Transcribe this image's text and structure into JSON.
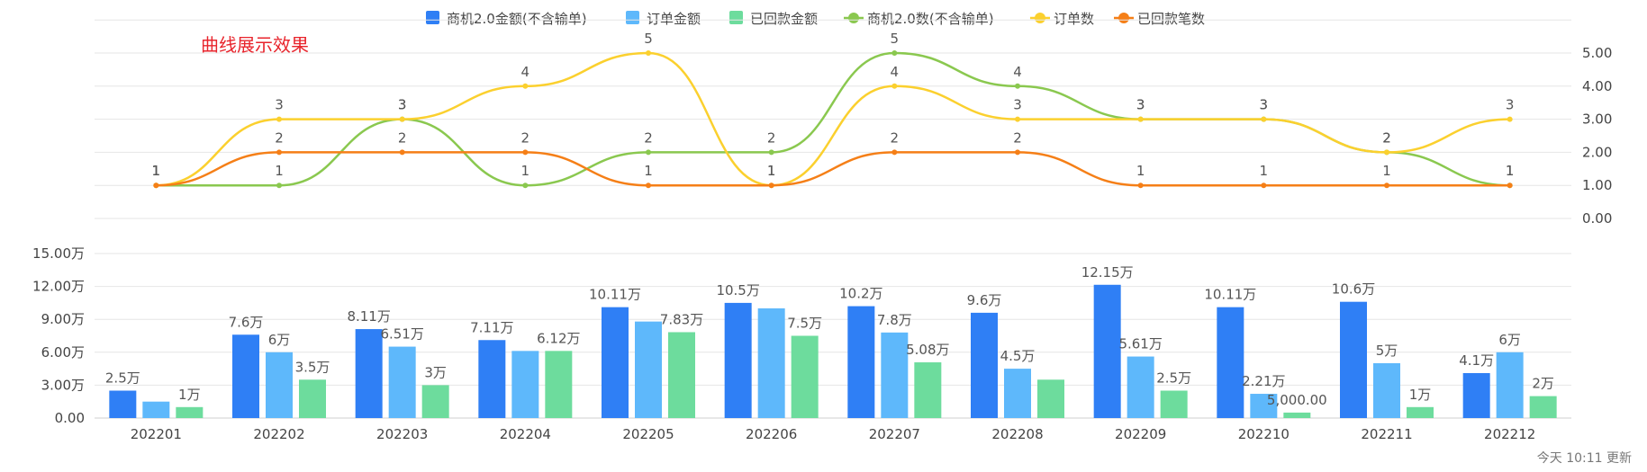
{
  "colors": {
    "biz_amount": "#2f7ff5",
    "order_amount": "#5eb8fb",
    "paid_amount": "#6ddc9d",
    "biz_count": "#8ac84f",
    "order_count": "#fbd02e",
    "paid_count": "#f57f17"
  },
  "annotation": "曲线展示效果",
  "footer": "今天 10:11 更新",
  "chart_data": [
    {
      "type": "line",
      "smooth": true,
      "categories": [
        "202201",
        "202202",
        "202203",
        "202204",
        "202205",
        "202206",
        "202207",
        "202208",
        "202209",
        "202210",
        "202211",
        "202212"
      ],
      "series": [
        {
          "name": "商机2.0数(不含输单)",
          "color_key": "biz_count",
          "values": [
            1,
            1,
            3,
            1,
            2,
            2,
            5,
            4,
            3,
            3,
            2,
            1
          ]
        },
        {
          "name": "订单数",
          "color_key": "order_count",
          "values": [
            1,
            3,
            3,
            4,
            5,
            1,
            4,
            3,
            3,
            3,
            2,
            3
          ]
        },
        {
          "name": "已回款笔数",
          "color_key": "paid_count",
          "values": [
            1,
            2,
            2,
            2,
            1,
            1,
            2,
            2,
            1,
            1,
            1,
            1
          ]
        }
      ],
      "yaxis_ticks": [
        "0.00",
        "1.00",
        "2.00",
        "3.00",
        "4.00",
        "5.00"
      ],
      "ylim": [
        0,
        6
      ],
      "yaxis_position": "right",
      "grid": true
    },
    {
      "type": "bar",
      "categories": [
        "202201",
        "202202",
        "202203",
        "202204",
        "202205",
        "202206",
        "202207",
        "202208",
        "202209",
        "202210",
        "202211",
        "202212"
      ],
      "series": [
        {
          "name": "商机2.0金额(不含输单)",
          "color_key": "biz_amount",
          "values": [
            25000,
            76000,
            81100,
            71100,
            101100,
            105000,
            102000,
            96000,
            121500,
            101100,
            106000,
            41000
          ],
          "labels": [
            "2.5万",
            "7.6万",
            "8.11万",
            "7.11万",
            "10.11万",
            "10.5万",
            "10.2万",
            "9.6万",
            "12.15万",
            "10.11万",
            "10.6万",
            "4.1万"
          ]
        },
        {
          "name": "订单金额",
          "color_key": "order_amount",
          "values": [
            15000,
            60000,
            65100,
            61200,
            88000,
            100000,
            78000,
            45000,
            56100,
            22100,
            50000,
            60000
          ],
          "labels": [
            "",
            "6万",
            "6.51万",
            "",
            "",
            "",
            "7.8万",
            "4.5万",
            "5.61万",
            "2.21万",
            "5万",
            "6万"
          ]
        },
        {
          "name": "已回款金额",
          "color_key": "paid_amount",
          "values": [
            10000,
            35000,
            30000,
            61200,
            78300,
            75000,
            50800,
            35000,
            25000,
            5000,
            10000,
            20000
          ],
          "labels": [
            "1万",
            "3.5万",
            "3万",
            "6.12万",
            "7.83万",
            "7.5万",
            "5.08万",
            "",
            "2.5万",
            "5,000.00",
            "1万",
            "2万"
          ]
        }
      ],
      "yaxis_ticks": [
        "0.00",
        "3.00万",
        "6.00万",
        "9.00万",
        "12.00万",
        "15.00万"
      ],
      "ylim": [
        0,
        150000
      ],
      "yaxis_position": "left",
      "grid": true
    }
  ],
  "legend": [
    {
      "label": "商机2.0金额(不含输单)",
      "color_key": "biz_amount",
      "kind": "bar"
    },
    {
      "label": "订单金额",
      "color_key": "order_amount",
      "kind": "bar"
    },
    {
      "label": "已回款金额",
      "color_key": "paid_amount",
      "kind": "bar"
    },
    {
      "label": "商机2.0数(不含输单)",
      "color_key": "biz_count",
      "kind": "line"
    },
    {
      "label": "订单数",
      "color_key": "order_count",
      "kind": "line"
    },
    {
      "label": "已回款笔数",
      "color_key": "paid_count",
      "kind": "line"
    }
  ]
}
